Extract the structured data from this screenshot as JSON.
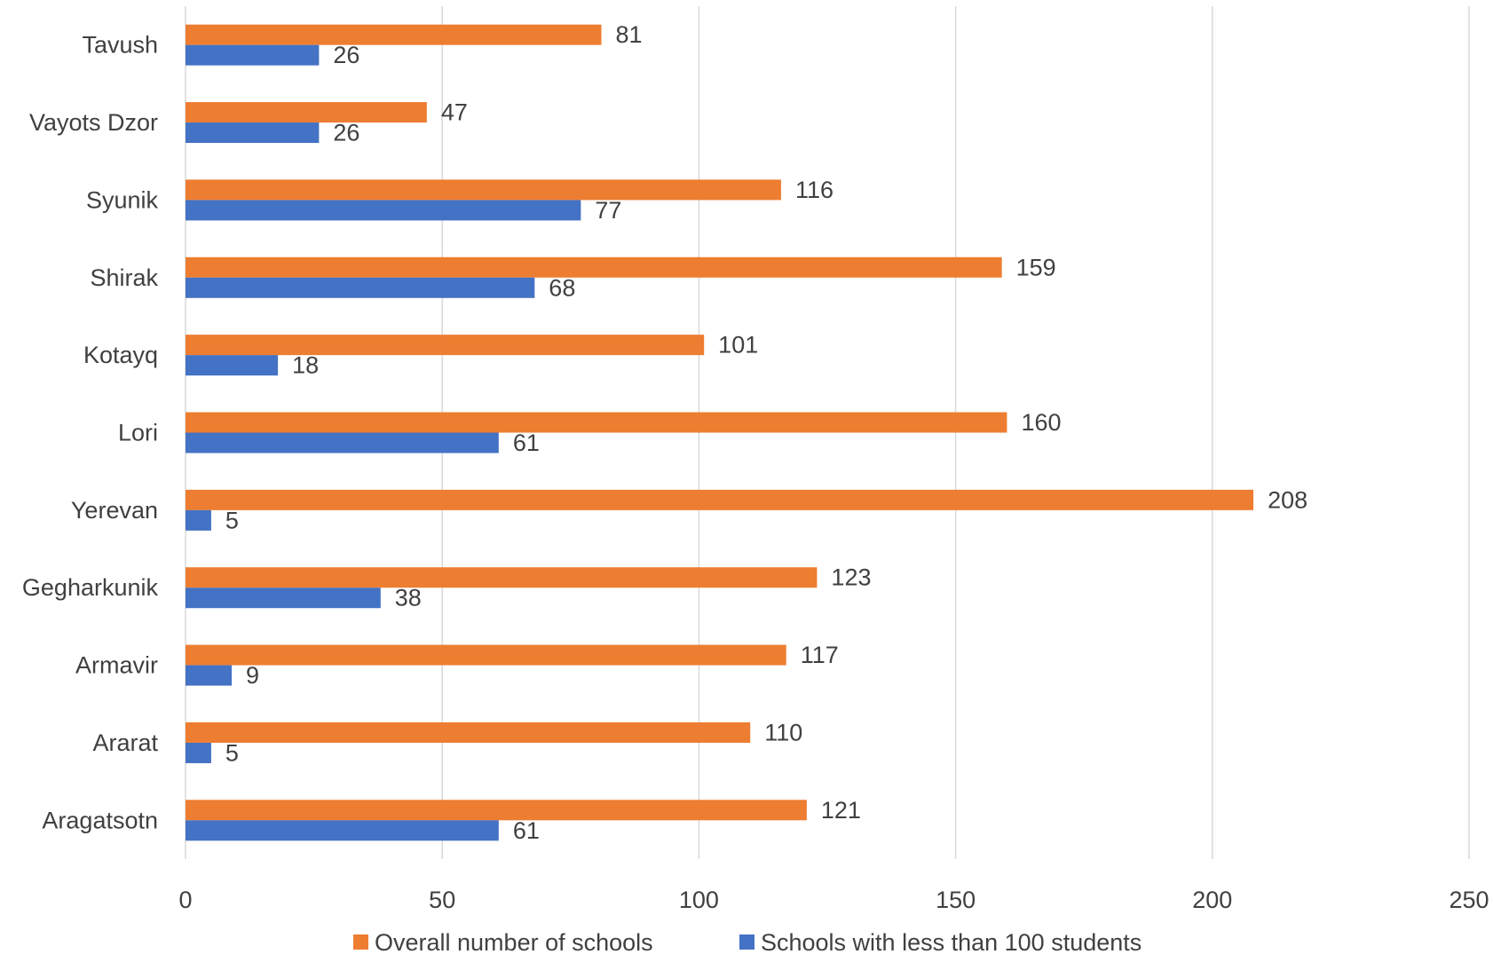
{
  "chart_data": {
    "type": "bar",
    "orientation": "horizontal",
    "categories": [
      "Tavush",
      "Vayots Dzor",
      "Syunik",
      "Shirak",
      "Kotayq",
      "Lori",
      "Yerevan",
      "Gegharkunik",
      "Armavir",
      "Ararat",
      "Aragatsotn"
    ],
    "series": [
      {
        "name": "Overall number of schools",
        "color": "#ED7D31",
        "values": [
          81,
          47,
          116,
          159,
          101,
          160,
          208,
          123,
          117,
          110,
          121
        ]
      },
      {
        "name": "Schools with less than 100 students",
        "color": "#4472C4",
        "values": [
          26,
          26,
          77,
          68,
          18,
          61,
          5,
          38,
          9,
          5,
          61
        ]
      }
    ],
    "xlim": [
      0,
      250
    ],
    "xticks": [
      0,
      50,
      100,
      150,
      200,
      250
    ],
    "grid": true,
    "legend_position": "bottom",
    "data_labels": true
  }
}
